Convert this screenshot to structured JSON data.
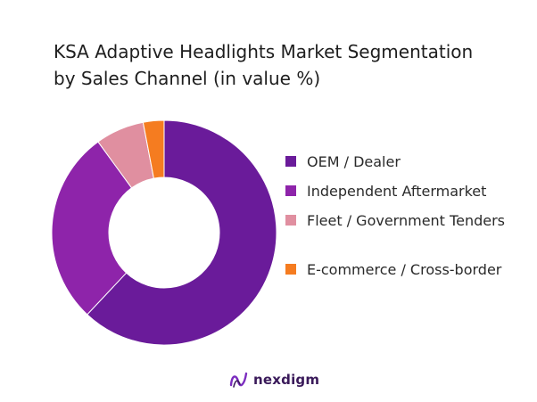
{
  "title": "KSA Adaptive Headlights Market Segmentation by Sales Channel (in value %)",
  "brand": {
    "name": "nexdigm",
    "icon": "nexdigm-logo-icon"
  },
  "chart_data": {
    "type": "pie",
    "variant": "donut",
    "title": "KSA Adaptive Headlights Market Segmentation by Sales Channel (in value %)",
    "categories": [
      "OEM / Dealer",
      "Independent Aftermarket",
      "Fleet / Government Tenders",
      "E-commerce / Cross-border"
    ],
    "values": [
      62,
      28,
      7,
      3
    ],
    "colors": [
      "#6a1b9a",
      "#8e24aa",
      "#e08fa0",
      "#f57c20"
    ],
    "legend_position": "right",
    "start_angle_deg": 0,
    "direction": "clockwise"
  }
}
